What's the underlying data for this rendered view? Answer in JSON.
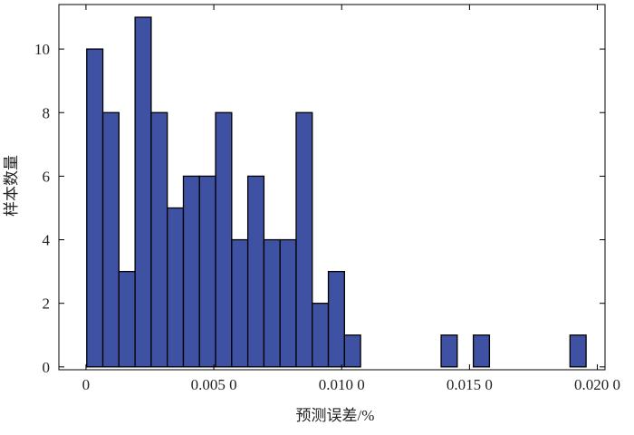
{
  "chart_data": {
    "type": "histogram",
    "xlabel": "预测误差/%",
    "ylabel": "样本数量",
    "bins": [
      3e-05,
      0.00066,
      0.00129,
      0.00192,
      0.00255,
      0.00318,
      0.00381,
      0.00444,
      0.00507,
      0.0057,
      0.00633,
      0.00696,
      0.00759,
      0.00822,
      0.00885,
      0.00948,
      0.01011,
      0.01074,
      0.01137,
      0.012,
      0.01263,
      0.01326,
      0.01389,
      0.01452,
      0.01515,
      0.01578,
      0.01641,
      0.01704,
      0.01767,
      0.0183,
      0.01893,
      0.01956
    ],
    "values": [
      10,
      8,
      3,
      11,
      8,
      5,
      6,
      6,
      8,
      4,
      6,
      4,
      4,
      8,
      2,
      3,
      1,
      0,
      0,
      0,
      0,
      0,
      1,
      0,
      1,
      0,
      0,
      0,
      0,
      0,
      1
    ],
    "color": "#3f51a3",
    "xlim": [
      -0.00106,
      0.0203
    ],
    "ylim": [
      -0.09,
      11.4
    ],
    "xticks": [
      0,
      {
        "value": 0.005,
        "label": "0.005 0"
      },
      {
        "value": 0.01,
        "label": "0.010 0"
      },
      {
        "value": 0.015,
        "label": "0.015 0"
      },
      {
        "value": 0.02,
        "label": "0.020 0"
      }
    ],
    "yticks": [
      0,
      2,
      4,
      6,
      8,
      10
    ]
  }
}
